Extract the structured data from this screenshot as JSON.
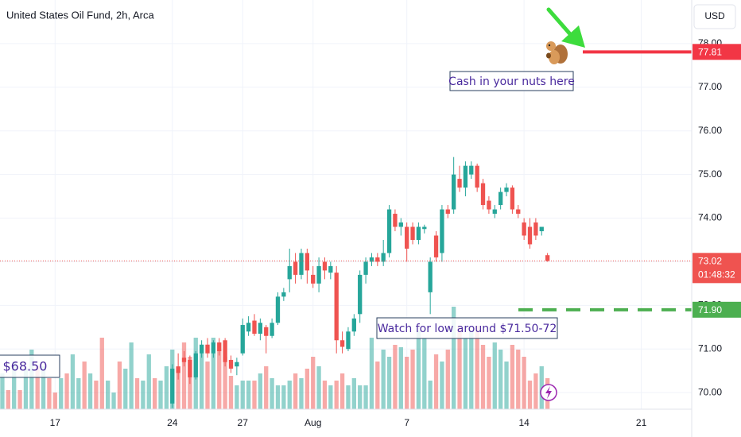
{
  "chart_data": {
    "type": "candlestick",
    "title": "United States Oil Fund, 2h, Arca",
    "currency": "USD",
    "countdown": "01:48:32",
    "up_color": "#26a69a",
    "down_color": "#ef5350",
    "grid": true,
    "xlim": [
      -0.4,
      117.6
    ],
    "xticks": [
      {
        "value": 9,
        "label": "17"
      },
      {
        "value": 29,
        "label": "24"
      },
      {
        "value": 41,
        "label": "27"
      },
      {
        "value": 53,
        "label": "Aug"
      },
      {
        "value": 69,
        "label": "7"
      },
      {
        "value": 89,
        "label": "14"
      },
      {
        "value": 109,
        "label": "21"
      }
    ],
    "ylim": [
      69.62,
      79.0
    ],
    "yticks": [
      {
        "value": 70,
        "label": "70.00"
      },
      {
        "value": 71,
        "label": "71.00"
      },
      {
        "value": 72,
        "label": "72.00"
      },
      {
        "value": 73,
        "label": "73.00"
      },
      {
        "value": 74,
        "label": "74.00"
      },
      {
        "value": 75,
        "label": "75.00"
      },
      {
        "value": 76,
        "label": "76.00"
      },
      {
        "value": 77,
        "label": "77.00"
      },
      {
        "value": 78,
        "label": "78.00"
      }
    ],
    "open": [
      null,
      null,
      null,
      null,
      null,
      null,
      null,
      null,
      null,
      null,
      null,
      null,
      null,
      null,
      null,
      null,
      null,
      null,
      null,
      null,
      null,
      null,
      null,
      null,
      null,
      null,
      null,
      null,
      null,
      69.75,
      70.6,
      70.8,
      70.75,
      70.35,
      70.9,
      71.1,
      70.9,
      71.15,
      71.2,
      70.75,
      70.6,
      70.9,
      71.4,
      71.65,
      71.35,
      71.5,
      71.3,
      71.6,
      72.2,
      72.6,
      73.0,
      72.7,
      73.2,
      72.7,
      72.5,
      73.0,
      72.75,
      72.75,
      71.2,
      71.0,
      71.4,
      71.8,
      72.7,
      73.0,
      73.1,
      73.0,
      73.2,
      74.1,
      73.8,
      73.8,
      73.8,
      73.5,
      73.75,
      72.3,
      73.6,
      73.2,
      74.2,
      74.2,
      74.9,
      74.7,
      75.0,
      75.2,
      74.8,
      74.4,
      74.1,
      74.3,
      74.6,
      74.7,
      74.2,
      73.9,
      73.8,
      73.9,
      73.7,
      73.15
    ],
    "high": [
      null,
      null,
      null,
      null,
      null,
      null,
      null,
      null,
      null,
      null,
      null,
      null,
      null,
      null,
      null,
      null,
      null,
      null,
      null,
      null,
      null,
      null,
      null,
      null,
      null,
      null,
      null,
      null,
      null,
      70.65,
      70.9,
      70.95,
      70.85,
      70.95,
      71.2,
      71.25,
      71.2,
      71.25,
      71.25,
      70.85,
      70.8,
      71.7,
      71.75,
      71.8,
      71.7,
      71.55,
      71.7,
      72.3,
      72.4,
      73.3,
      73.2,
      73.3,
      73.3,
      72.9,
      73.1,
      73.1,
      73.0,
      72.9,
      71.4,
      71.5,
      71.8,
      72.8,
      73.1,
      73.2,
      73.2,
      73.5,
      74.3,
      74.2,
      74.0,
      73.9,
      73.9,
      73.9,
      73.85,
      73.1,
      73.7,
      74.3,
      74.3,
      75.4,
      75.2,
      75.3,
      75.3,
      75.25,
      74.9,
      74.5,
      74.3,
      74.7,
      74.8,
      74.75,
      74.3,
      74.0,
      74.0,
      74.0,
      73.8,
      73.2
    ],
    "low": [
      null,
      null,
      null,
      null,
      null,
      null,
      null,
      null,
      null,
      null,
      null,
      null,
      null,
      null,
      null,
      null,
      null,
      null,
      null,
      null,
      null,
      null,
      null,
      null,
      null,
      null,
      null,
      null,
      null,
      69.65,
      70.3,
      70.6,
      70.2,
      70.3,
      70.8,
      70.8,
      70.8,
      70.85,
      70.6,
      70.45,
      70.4,
      70.85,
      71.3,
      71.3,
      71.2,
      70.9,
      71.25,
      71.55,
      72.1,
      72.3,
      72.5,
      72.6,
      72.5,
      72.4,
      72.3,
      72.6,
      72.6,
      70.9,
      70.9,
      70.95,
      71.3,
      71.6,
      72.5,
      72.9,
      72.9,
      72.9,
      73.1,
      73.7,
      73.6,
      73.0,
      73.4,
      73.4,
      73.65,
      71.8,
      73.0,
      73.0,
      74.0,
      74.1,
      74.6,
      74.5,
      74.9,
      74.6,
      74.2,
      74.1,
      74.0,
      74.2,
      74.5,
      74.1,
      74.0,
      73.5,
      73.3,
      73.5,
      73.6,
      73.0
    ],
    "close": [
      null,
      null,
      null,
      null,
      null,
      null,
      null,
      null,
      null,
      null,
      null,
      null,
      null,
      null,
      null,
      null,
      null,
      null,
      null,
      null,
      null,
      null,
      null,
      null,
      null,
      null,
      null,
      null,
      null,
      70.55,
      70.45,
      70.7,
      70.35,
      70.9,
      71.1,
      70.9,
      71.15,
      70.95,
      70.7,
      70.55,
      70.7,
      71.55,
      71.6,
      71.35,
      71.6,
      71.3,
      71.6,
      72.2,
      72.3,
      72.9,
      72.7,
      73.2,
      72.8,
      72.5,
      72.9,
      72.8,
      72.9,
      71.2,
      71.05,
      71.4,
      71.7,
      72.7,
      73.0,
      73.1,
      73.0,
      73.2,
      74.2,
      73.8,
      73.9,
      73.3,
      73.5,
      73.8,
      73.8,
      73.0,
      73.1,
      74.2,
      74.1,
      75.0,
      74.7,
      75.2,
      75.2,
      74.7,
      74.3,
      74.2,
      74.2,
      74.6,
      74.7,
      74.2,
      74.1,
      73.6,
      73.4,
      73.6,
      73.8,
      73.02
    ],
    "volume_ylim": [
      0,
      100
    ],
    "volume": [
      15,
      8,
      20,
      8,
      17,
      25,
      18,
      18,
      13,
      7,
      13,
      15,
      23,
      13,
      20,
      15,
      12,
      30,
      12,
      7,
      20,
      17,
      28,
      13,
      12,
      23,
      13,
      12,
      18,
      25,
      18,
      28,
      22,
      30,
      27,
      20,
      30,
      25,
      22,
      14,
      10,
      12,
      12,
      12,
      15,
      18,
      13,
      10,
      10,
      12,
      15,
      13,
      17,
      22,
      18,
      12,
      10,
      12,
      15,
      10,
      13,
      10,
      10,
      30,
      20,
      25,
      22,
      27,
      26,
      22,
      25,
      33,
      30,
      12,
      23,
      20,
      25,
      43,
      35,
      30,
      33,
      35,
      27,
      22,
      28,
      25,
      20,
      27,
      25,
      22,
      12,
      15,
      18,
      13
    ],
    "volume_up": [
      true,
      false,
      true,
      false,
      true,
      true,
      false,
      true,
      false,
      false,
      true,
      false,
      true,
      true,
      false,
      true,
      false,
      false,
      true,
      true,
      false,
      true,
      true,
      false,
      true,
      true,
      false,
      true,
      true,
      true,
      false,
      false,
      false,
      true,
      true,
      false,
      true,
      false,
      false,
      false,
      true,
      true,
      true,
      false,
      true,
      false,
      true,
      true,
      true,
      true,
      false,
      true,
      false,
      false,
      true,
      false,
      true,
      false,
      false,
      true,
      true,
      true,
      true,
      true,
      false,
      true,
      true,
      false,
      true,
      false,
      false,
      true,
      true,
      true,
      false,
      true,
      false,
      true,
      false,
      true,
      true,
      false,
      false,
      false,
      true,
      true,
      true,
      false,
      false,
      false,
      false,
      false,
      true,
      false
    ],
    "price_labels": [
      {
        "value": 77.81,
        "color": "#f23645"
      },
      {
        "value": 71.9,
        "label": "71.90",
        "color": "#4caf50"
      }
    ],
    "annotations": [
      {
        "text": "Cash in your nuts here"
      },
      {
        "text": "Watch for low around $71.50-72"
      },
      {
        "text": "$68.50"
      }
    ]
  }
}
